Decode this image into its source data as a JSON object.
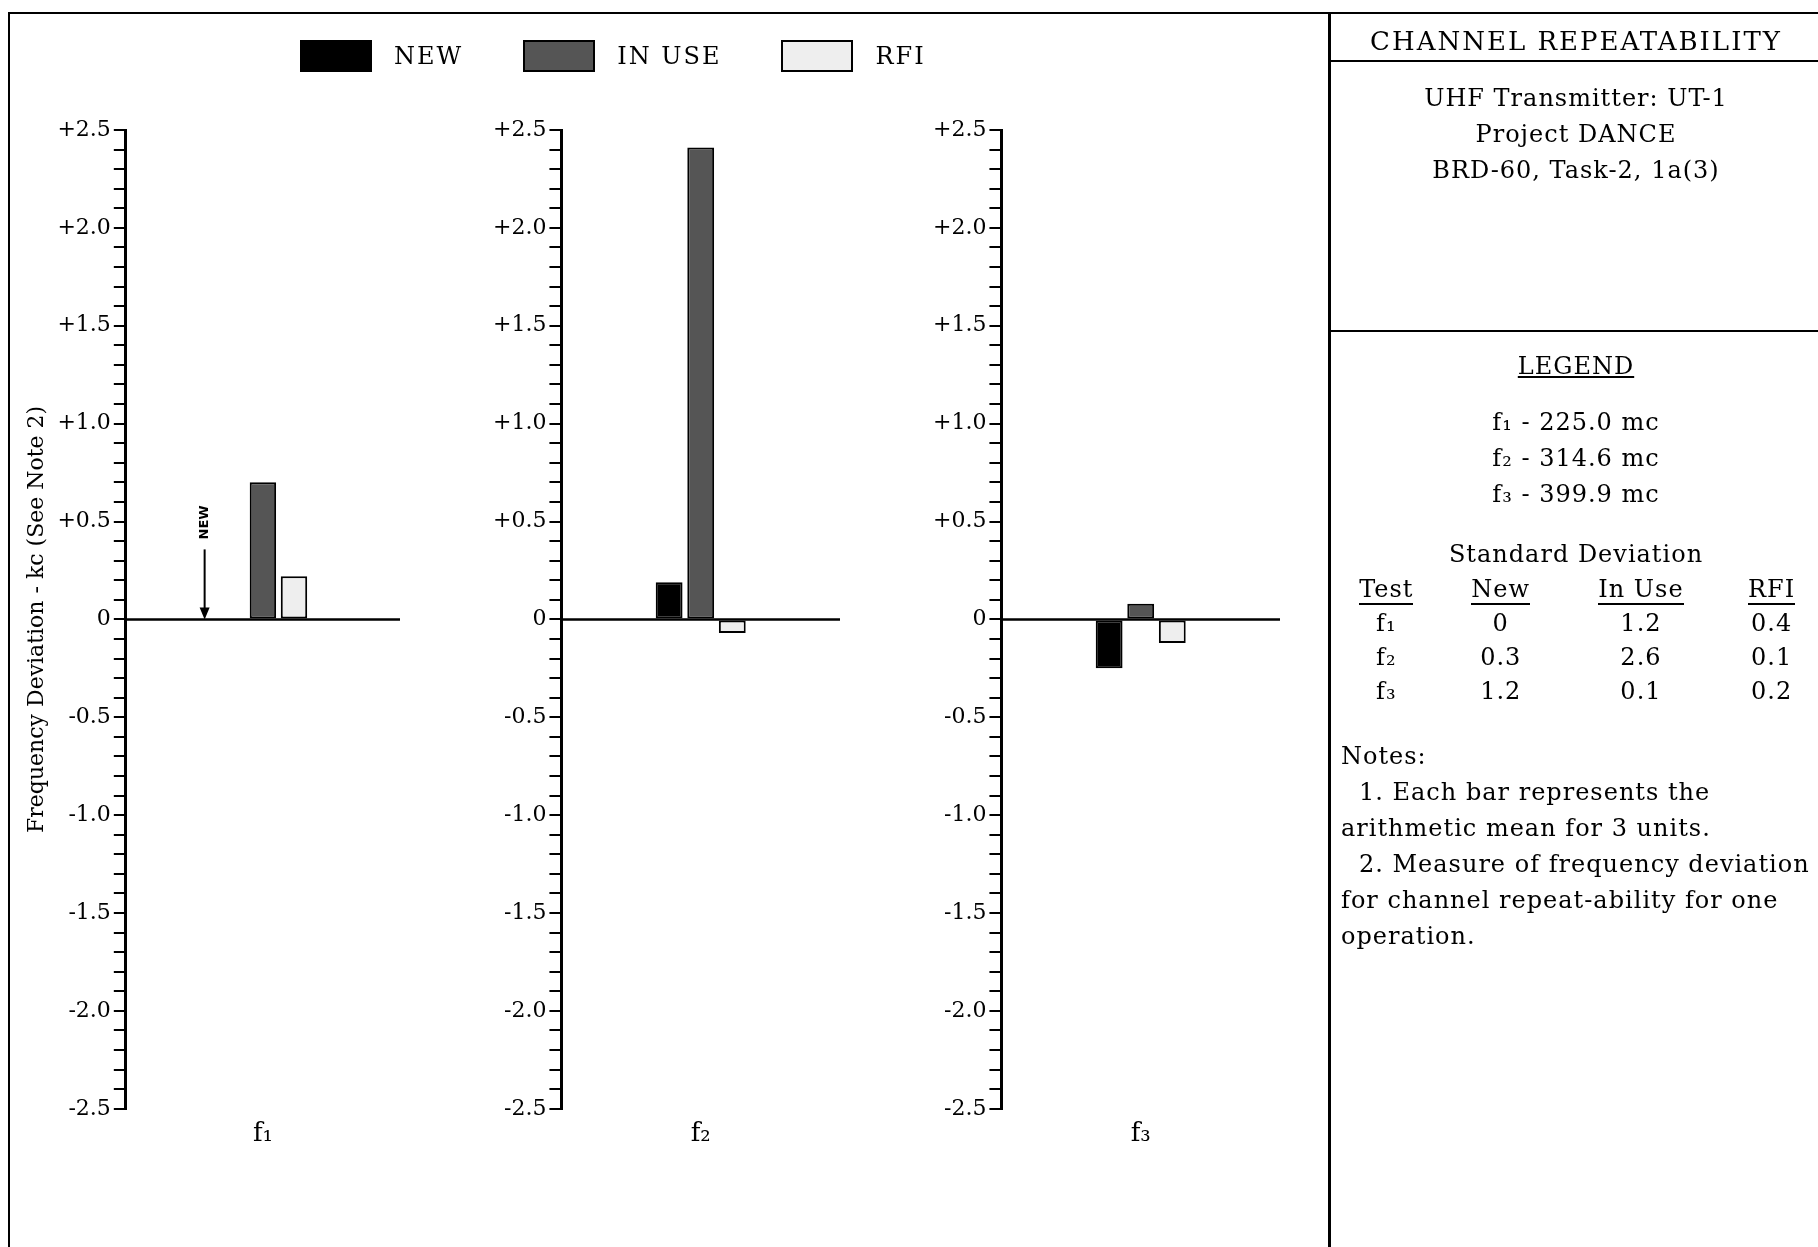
{
  "chart_data": [
    {
      "type": "bar",
      "ylabel": "Frequency Deviation - kc (See Note 2)",
      "categories": [
        "f₁"
      ],
      "series": [
        {
          "name": "NEW",
          "color": "#000000",
          "values": [
            0
          ]
        },
        {
          "name": "IN USE",
          "color": "#555555",
          "values": [
            0.7
          ]
        },
        {
          "name": "RFI",
          "color": "#eeeeee",
          "values": [
            0.22
          ]
        }
      ],
      "ylim": [
        -2.5,
        2.5
      ],
      "yticks": [
        {
          "value": -2.5,
          "label": "-2.5"
        },
        {
          "value": -2.4,
          "label": null
        },
        {
          "value": -2.3,
          "label": null
        },
        {
          "value": -2.2,
          "label": null
        },
        {
          "value": -2.1,
          "label": null
        },
        {
          "value": -2.0,
          "label": "-2.0"
        },
        {
          "value": -1.9,
          "label": null
        },
        {
          "value": -1.8,
          "label": null
        },
        {
          "value": -1.7,
          "label": null
        },
        {
          "value": -1.6,
          "label": null
        },
        {
          "value": -1.5,
          "label": "-1.5"
        },
        {
          "value": -1.4,
          "label": null
        },
        {
          "value": -1.3,
          "label": null
        },
        {
          "value": -1.2,
          "label": null
        },
        {
          "value": -1.1,
          "label": null
        },
        {
          "value": -1.0,
          "label": "-1.0"
        },
        {
          "value": -0.9,
          "label": null
        },
        {
          "value": -0.8,
          "label": null
        },
        {
          "value": -0.7,
          "label": null
        },
        {
          "value": -0.6,
          "label": null
        },
        {
          "value": -0.5,
          "label": "-0.5"
        },
        {
          "value": -0.4,
          "label": null
        },
        {
          "value": -0.3,
          "label": null
        },
        {
          "value": -0.2,
          "label": null
        },
        {
          "value": -0.1,
          "label": null
        },
        {
          "value": 0,
          "label": "0"
        },
        {
          "value": 0.1,
          "label": null
        },
        {
          "value": 0.2,
          "label": null
        },
        {
          "value": 0.3,
          "label": null
        },
        {
          "value": 0.4,
          "label": null
        },
        {
          "value": 0.5,
          "label": "+0.5"
        },
        {
          "value": 0.6,
          "label": null
        },
        {
          "value": 0.7,
          "label": null
        },
        {
          "value": 0.8,
          "label": null
        },
        {
          "value": 0.9,
          "label": null
        },
        {
          "value": 1.0,
          "label": "+1.0"
        },
        {
          "value": 1.1,
          "label": null
        },
        {
          "value": 1.2,
          "label": null
        },
        {
          "value": 1.3,
          "label": null
        },
        {
          "value": 1.4,
          "label": null
        },
        {
          "value": 1.5,
          "label": "+1.5"
        },
        {
          "value": 1.6,
          "label": null
        },
        {
          "value": 1.7,
          "label": null
        },
        {
          "value": 1.8,
          "label": null
        },
        {
          "value": 1.9,
          "label": null
        },
        {
          "value": 2.0,
          "label": "+2.0"
        },
        {
          "value": 2.1,
          "label": null
        },
        {
          "value": 2.2,
          "label": null
        },
        {
          "value": 2.3,
          "label": null
        },
        {
          "value": 2.4,
          "label": null
        },
        {
          "value": 2.5,
          "label": "+2.5"
        }
      ],
      "legend": "top",
      "annotations": [
        "NEW"
      ]
    },
    {
      "type": "bar",
      "categories": [
        "f₂"
      ],
      "series": [
        {
          "color": "#000000",
          "values": [
            0.19
          ]
        },
        {
          "color": "#555555",
          "values": [
            2.41
          ]
        },
        {
          "color": "#eeeeee",
          "values": [
            -0.07
          ]
        }
      ],
      "ylim": [
        -2.5,
        2.5
      ],
      "yticks": [
        {
          "value": -2.5,
          "label": "-2.5"
        },
        {
          "value": -2.4,
          "label": null
        },
        {
          "value": -2.3,
          "label": null
        },
        {
          "value": -2.2,
          "label": null
        },
        {
          "value": -2.1,
          "label": null
        },
        {
          "value": -2.0,
          "label": "-2.0"
        },
        {
          "value": -1.9,
          "label": null
        },
        {
          "value": -1.8,
          "label": null
        },
        {
          "value": -1.7,
          "label": null
        },
        {
          "value": -1.6,
          "label": null
        },
        {
          "value": -1.5,
          "label": "-1.5"
        },
        {
          "value": -1.4,
          "label": null
        },
        {
          "value": -1.3,
          "label": null
        },
        {
          "value": -1.2,
          "label": null
        },
        {
          "value": -1.1,
          "label": null
        },
        {
          "value": -1.0,
          "label": "-1.0"
        },
        {
          "value": -0.9,
          "label": null
        },
        {
          "value": -0.8,
          "label": null
        },
        {
          "value": -0.7,
          "label": null
        },
        {
          "value": -0.6,
          "label": null
        },
        {
          "value": -0.5,
          "label": "-0.5"
        },
        {
          "value": -0.4,
          "label": null
        },
        {
          "value": -0.3,
          "label": null
        },
        {
          "value": -0.2,
          "label": null
        },
        {
          "value": -0.1,
          "label": null
        },
        {
          "value": 0,
          "label": "0"
        },
        {
          "value": 0.1,
          "label": null
        },
        {
          "value": 0.2,
          "label": null
        },
        {
          "value": 0.3,
          "label": null
        },
        {
          "value": 0.4,
          "label": null
        },
        {
          "value": 0.5,
          "label": "+0.5"
        },
        {
          "value": 0.6,
          "label": null
        },
        {
          "value": 0.7,
          "label": null
        },
        {
          "value": 0.8,
          "label": null
        },
        {
          "value": 0.9,
          "label": null
        },
        {
          "value": 1.0,
          "label": "+1.0"
        },
        {
          "value": 1.1,
          "label": null
        },
        {
          "value": 1.2,
          "label": null
        },
        {
          "value": 1.3,
          "label": null
        },
        {
          "value": 1.4,
          "label": null
        },
        {
          "value": 1.5,
          "label": "+1.5"
        },
        {
          "value": 1.6,
          "label": null
        },
        {
          "value": 1.7,
          "label": null
        },
        {
          "value": 1.8,
          "label": null
        },
        {
          "value": 1.9,
          "label": null
        },
        {
          "value": 2.0,
          "label": "+2.0"
        },
        {
          "value": 2.1,
          "label": null
        },
        {
          "value": 2.2,
          "label": null
        },
        {
          "value": 2.3,
          "label": null
        },
        {
          "value": 2.4,
          "label": null
        },
        {
          "value": 2.5,
          "label": "+2.5"
        }
      ]
    },
    {
      "type": "bar",
      "categories": [
        "f₃"
      ],
      "series": [
        {
          "color": "#000000",
          "values": [
            -0.25
          ]
        },
        {
          "color": "#555555",
          "values": [
            0.08
          ]
        },
        {
          "color": "#eeeeee",
          "values": [
            -0.12
          ]
        }
      ],
      "ylim": [
        -2.5,
        2.5
      ],
      "yticks": [
        {
          "value": -2.5,
          "label": "-2.5"
        },
        {
          "value": -2.4,
          "label": null
        },
        {
          "value": -2.3,
          "label": null
        },
        {
          "value": -2.2,
          "label": null
        },
        {
          "value": -2.1,
          "label": null
        },
        {
          "value": -2.0,
          "label": "-2.0"
        },
        {
          "value": -1.9,
          "label": null
        },
        {
          "value": -1.8,
          "label": null
        },
        {
          "value": -1.7,
          "label": null
        },
        {
          "value": -1.6,
          "label": null
        },
        {
          "value": -1.5,
          "label": "-1.5"
        },
        {
          "value": -1.4,
          "label": null
        },
        {
          "value": -1.3,
          "label": null
        },
        {
          "value": -1.2,
          "label": null
        },
        {
          "value": -1.1,
          "label": null
        },
        {
          "value": -1.0,
          "label": "-1.0"
        },
        {
          "value": -0.9,
          "label": null
        },
        {
          "value": -0.8,
          "label": null
        },
        {
          "value": -0.7,
          "label": null
        },
        {
          "value": -0.6,
          "label": null
        },
        {
          "value": -0.5,
          "label": "-0.5"
        },
        {
          "value": -0.4,
          "label": null
        },
        {
          "value": -0.3,
          "label": null
        },
        {
          "value": -0.2,
          "label": null
        },
        {
          "value": -0.1,
          "label": null
        },
        {
          "value": 0,
          "label": "0"
        },
        {
          "value": 0.1,
          "label": null
        },
        {
          "value": 0.2,
          "label": null
        },
        {
          "value": 0.3,
          "label": null
        },
        {
          "value": 0.4,
          "label": null
        },
        {
          "value": 0.5,
          "label": "+0.5"
        },
        {
          "value": 0.6,
          "label": null
        },
        {
          "value": 0.7,
          "label": null
        },
        {
          "value": 0.8,
          "label": null
        },
        {
          "value": 0.9,
          "label": null
        },
        {
          "value": 1.0,
          "label": "+1.0"
        },
        {
          "value": 1.1,
          "label": null
        },
        {
          "value": 1.2,
          "label": null
        },
        {
          "value": 1.3,
          "label": null
        },
        {
          "value": 1.4,
          "label": null
        },
        {
          "value": 1.5,
          "label": "+1.5"
        },
        {
          "value": 1.6,
          "label": null
        },
        {
          "value": 1.7,
          "label": null
        },
        {
          "value": 1.8,
          "label": null
        },
        {
          "value": 1.9,
          "label": null
        },
        {
          "value": 2.0,
          "label": "+2.0"
        },
        {
          "value": 2.1,
          "label": null
        },
        {
          "value": 2.2,
          "label": null
        },
        {
          "value": 2.3,
          "label": null
        },
        {
          "value": 2.4,
          "label": null
        },
        {
          "value": 2.5,
          "label": "+2.5"
        }
      ]
    },
    {
      "type": "other",
      "title": "CHANNEL REPEATABILITY",
      "subtitle": "UHF Transmitter: UT-1\nProject DANCE\nBRD-60, Task-2, 1a(3)",
      "annotations": [
        "LEGEND",
        "f₁ - 225.0 mc",
        "f₂ - 314.6 mc",
        "f₃ - 399.9 mc"
      ]
    },
    {
      "type": "heatmap",
      "title": "Standard Deviation",
      "ylabel": "Test",
      "categories": [
        "New",
        "In Use",
        "RFI"
      ],
      "y_categories": [
        "f₁",
        "f₂",
        "f₃"
      ],
      "cells": [
        [
          0,
          1.2,
          0.4
        ],
        [
          0.3,
          2.6,
          0.1
        ],
        [
          1.2,
          0.1,
          0.2
        ]
      ],
      "data_labels": true
    },
    {
      "type": "other",
      "annotations": [
        "Notes:",
        "1. Each bar represents the arithmetic mean for 3 units.",
        "2. Measure of frequency deviation for channel repeat-ability for one operation."
      ]
    }
  ]
}
